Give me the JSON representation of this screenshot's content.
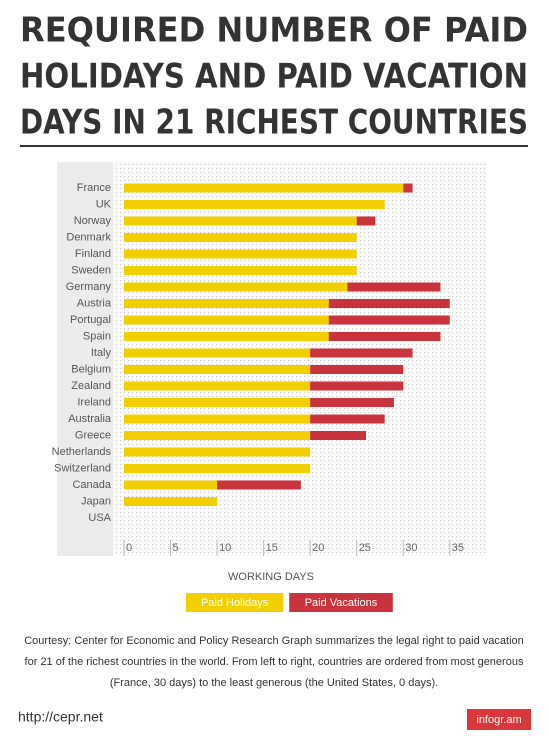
{
  "chart_data": {
    "type": "bar",
    "orientation": "horizontal",
    "stacked": true,
    "title": [
      "REQUIRED NUMBER OF PAID",
      "HOLIDAYS AND PAID VACATION",
      "DAYS IN 21 RICHEST COUNTRIES"
    ],
    "categories": [
      "France",
      "UK",
      "Norway",
      "Denmark",
      "Finland",
      "Sweden",
      "Germany",
      "Austria",
      "Portugal",
      "Spain",
      "Italy",
      "Belgium",
      "Zealand",
      "Ireland",
      "Australia",
      "Greece",
      "Netherlands",
      "Switzerland",
      "Canada",
      "Japan",
      "USA"
    ],
    "series": [
      {
        "name": "Paid Holidays",
        "color": "#f2cf00",
        "values": [
          30,
          28,
          25,
          25,
          25,
          25,
          24,
          22,
          22,
          22,
          20,
          20,
          20,
          20,
          20,
          20,
          20,
          20,
          10,
          10,
          0
        ]
      },
      {
        "name": "Paid Vacations",
        "color": "#c9343c",
        "values": [
          1,
          0,
          2,
          0,
          0,
          0,
          10,
          13,
          13,
          12,
          11,
          10,
          10,
          9,
          8,
          6,
          0,
          0,
          9,
          0,
          0
        ]
      }
    ],
    "xlim": [
      0,
      39
    ],
    "xticks": [
      0,
      5,
      10,
      15,
      20,
      25,
      30,
      35
    ],
    "xlabel": "WORKING DAYS",
    "grid": true,
    "caption": [
      "Courtesy: Center for Economic and Policy Research Graph summarizes the legal right to paid vacation",
      "for 21 of the richest countries in the world. From left to right, countries are ordered from most generous",
      "(France, 30 days) to the least generous (the United States, 0 days)."
    ],
    "source": "http://cepr.net",
    "brand": "infogr.am"
  }
}
